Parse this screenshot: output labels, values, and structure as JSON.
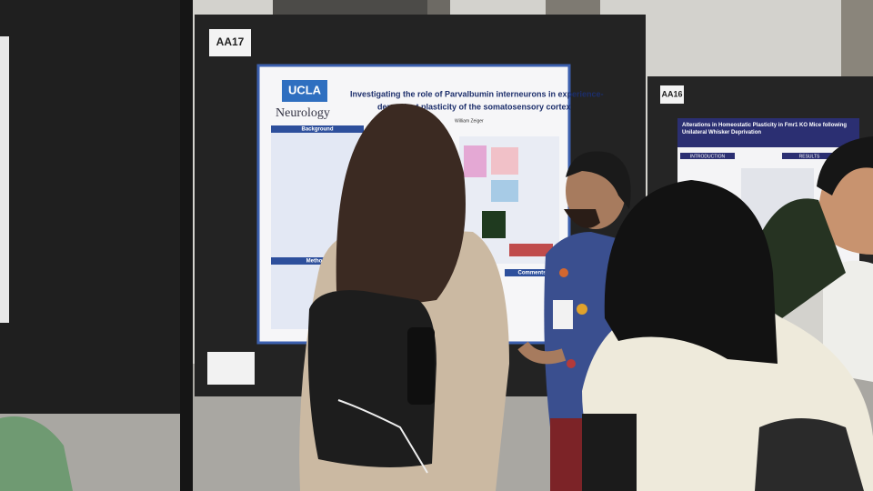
{
  "boards": [
    {
      "label": "AA17"
    },
    {
      "label": "AA16"
    }
  ],
  "posters": [
    {
      "logo": "UCLA",
      "department": "Neurology",
      "title_lines": [
        "Investigating the role of Parvalbumin interneurons in experience-",
        "dependent plasticity of the somatosensory cortex"
      ],
      "authors": "William Zeiger",
      "sections": [
        "Background",
        "Methods",
        "Comments"
      ]
    },
    {
      "title": "Alterations in Homeostatic Plasticity in Fmr1 KO Mice following Unilateral Whisker Deprivation",
      "sections": [
        "INTRODUCTION",
        "RESULTS"
      ]
    }
  ]
}
